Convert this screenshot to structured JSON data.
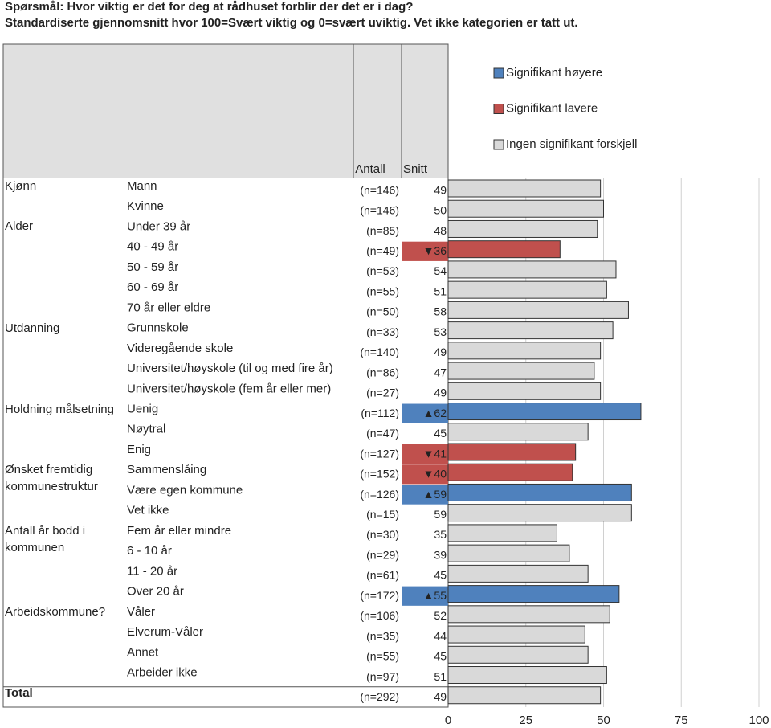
{
  "chart_data": {
    "type": "bar",
    "title": "Spørsmål: Hvor viktig er det for deg at rådhuset forblir der det er i dag?",
    "subtitle": "Standardiserte gjennomsnitt hvor 100=Svært viktig og 0=svært uviktig. Vet ikke kategorien er tatt ut.",
    "column_headers": [
      "Antall",
      "Snitt"
    ],
    "legend": [
      {
        "name": "Signifikant høyere",
        "color": "#4f81bd"
      },
      {
        "name": "Signifikant lavere",
        "color": "#c0504d"
      },
      {
        "name": "Ingen signifikant forskjell",
        "color": "#d9d9d9"
      }
    ],
    "group_labels": [
      "Kjønn",
      null,
      "Alder",
      null,
      null,
      null,
      null,
      "Utdanning",
      null,
      null,
      null,
      "Holdning målsetning",
      null,
      null,
      "Ønsket fremtidig kommunestruktur",
      null,
      null,
      "Antall år bodd i kommunen",
      null,
      null,
      null,
      "Arbeidskommune?",
      null,
      null,
      null,
      "Total"
    ],
    "categories": [
      "Mann",
      "Kvinne",
      "Under 39 år",
      "40 - 49 år",
      "50 - 59 år",
      "60 - 69 år",
      "70 år eller eldre",
      "Grunnskole",
      "Videregående skole",
      "Universitet/høyskole (til og med fire år)",
      "Universitet/høyskole (fem år eller mer)",
      "Uenig",
      "Nøytral",
      "Enig",
      "Sammenslåing",
      "Være egen kommune",
      "Vet ikke",
      "Fem år eller mindre",
      "6 - 10 år",
      "11 - 20 år",
      "Over 20 år",
      "Våler",
      "Elverum-Våler",
      "Annet",
      "Arbeider ikke",
      null
    ],
    "n_labels": [
      "(n=146)",
      "(n=146)",
      "(n=85)",
      "(n=49)",
      "(n=53)",
      "(n=55)",
      "(n=50)",
      "(n=33)",
      "(n=140)",
      "(n=86)",
      "(n=27)",
      "(n=112)",
      "(n=47)",
      "(n=127)",
      "(n=152)",
      "(n=126)",
      "(n=15)",
      "(n=30)",
      "(n=29)",
      "(n=61)",
      "(n=172)",
      "(n=106)",
      "(n=35)",
      "(n=55)",
      "(n=97)",
      "(n=292)"
    ],
    "series": [
      {
        "values": [
          49,
          50,
          48,
          36,
          54,
          51,
          58,
          53,
          49,
          47,
          49,
          62,
          45,
          41,
          40,
          59,
          59,
          35,
          39,
          45,
          55,
          52,
          44,
          45,
          51,
          49
        ],
        "value_labels": [
          "49",
          "50",
          "48",
          "▼36",
          "54",
          "51",
          "58",
          "53",
          "49",
          "47",
          "49",
          "▲62",
          "45",
          "▼41",
          "▼40",
          "▲59",
          "59",
          "35",
          "39",
          "45",
          "▲55",
          "52",
          "44",
          "45",
          "51",
          "49"
        ],
        "colors": [
          "#d9d9d9",
          "#d9d9d9",
          "#d9d9d9",
          "#c0504d",
          "#d9d9d9",
          "#d9d9d9",
          "#d9d9d9",
          "#d9d9d9",
          "#d9d9d9",
          "#d9d9d9",
          "#d9d9d9",
          "#4f81bd",
          "#d9d9d9",
          "#c0504d",
          "#c0504d",
          "#4f81bd",
          "#d9d9d9",
          "#d9d9d9",
          "#d9d9d9",
          "#d9d9d9",
          "#4f81bd",
          "#d9d9d9",
          "#d9d9d9",
          "#d9d9d9",
          "#d9d9d9",
          "#d9d9d9"
        ]
      }
    ],
    "xlim": [
      0,
      100
    ],
    "xticks": [
      0,
      25,
      50,
      75,
      100
    ],
    "grid": true
  }
}
